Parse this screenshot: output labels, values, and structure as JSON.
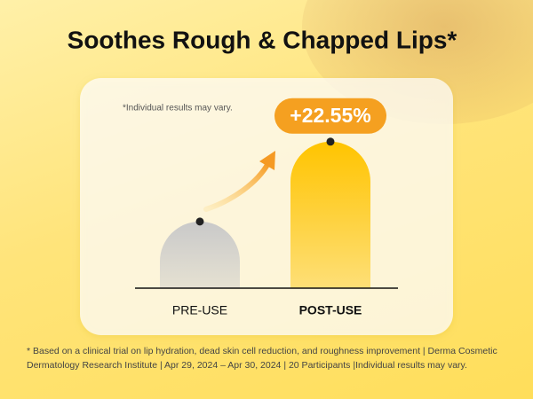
{
  "chart_data": {
    "type": "bar",
    "title": "Soothes Rough & Chapped Lips*",
    "subtitle": "*Individual results may vary.",
    "categories": [
      "PRE-USE",
      "POST-USE"
    ],
    "values": [
      100,
      122.55
    ],
    "colors": [
      "#c9c9c9",
      "#ffc400"
    ],
    "annotation": "+22.55%",
    "ylim": [
      81.2,
      130
    ],
    "footnote": "* Based on a clinical trial on lip hydration, dead skin cell reduction, and roughness improvement | Derma Cosmetic Dermatology Research Institute | Apr 29, 2024 – Apr 30, 2024 | 20 Participants |Individual results may vary."
  }
}
